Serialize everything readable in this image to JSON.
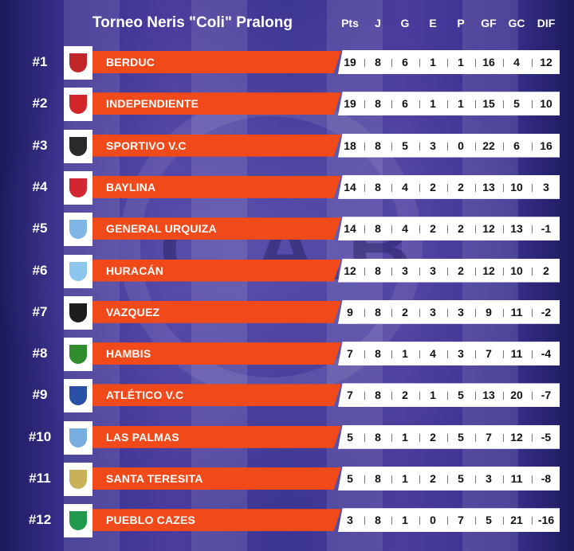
{
  "title": "Torneo Neris \"Coli\" Pralong",
  "columns": [
    "Pts",
    "J",
    "G",
    "E",
    "P",
    "GF",
    "GC",
    "DIF"
  ],
  "watermark": "C.A.B.",
  "teams": [
    {
      "pos": "#1",
      "name": "BERDUC",
      "crest": "berduc-crest-icon",
      "color": "#c0262a",
      "stats": [
        "19",
        "8",
        "6",
        "1",
        "1",
        "16",
        "4",
        "12"
      ]
    },
    {
      "pos": "#2",
      "name": "INDEPENDIENTE",
      "crest": "independiente-crest-icon",
      "color": "#d3262b",
      "stats": [
        "19",
        "8",
        "6",
        "1",
        "1",
        "15",
        "5",
        "10"
      ]
    },
    {
      "pos": "#3",
      "name": "SPORTIVO V.C",
      "crest": "sportivo-crest-icon",
      "color": "#2a2a2a",
      "stats": [
        "18",
        "8",
        "5",
        "3",
        "0",
        "22",
        "6",
        "16"
      ]
    },
    {
      "pos": "#4",
      "name": "BAYLINA",
      "crest": "baylina-crest-icon",
      "color": "#d22630",
      "stats": [
        "14",
        "8",
        "4",
        "2",
        "2",
        "13",
        "10",
        "3"
      ]
    },
    {
      "pos": "#5",
      "name": "GENERAL URQUIZA",
      "crest": "general-urquiza-crest-icon",
      "color": "#7fb6e6",
      "stats": [
        "14",
        "8",
        "4",
        "2",
        "2",
        "12",
        "13",
        "-1"
      ]
    },
    {
      "pos": "#6",
      "name": "HURACÁN",
      "crest": "huracan-crest-icon",
      "color": "#8cc6ec",
      "stats": [
        "12",
        "8",
        "3",
        "3",
        "2",
        "12",
        "10",
        "2"
      ]
    },
    {
      "pos": "#7",
      "name": "VAZQUEZ",
      "crest": "vazquez-crest-icon",
      "color": "#1c1c1c",
      "stats": [
        "9",
        "8",
        "2",
        "3",
        "3",
        "9",
        "11",
        "-2"
      ]
    },
    {
      "pos": "#8",
      "name": "HAMBIS",
      "crest": "hambis-crest-icon",
      "color": "#2f8c2f",
      "stats": [
        "7",
        "8",
        "1",
        "4",
        "3",
        "7",
        "11",
        "-4"
      ]
    },
    {
      "pos": "#9",
      "name": "ATLÉTICO V.C",
      "crest": "atletico-crest-icon",
      "color": "#2a4fa6",
      "stats": [
        "7",
        "8",
        "2",
        "1",
        "5",
        "13",
        "20",
        "-7"
      ]
    },
    {
      "pos": "#10",
      "name": "LAS PALMAS",
      "crest": "las-palmas-crest-icon",
      "color": "#79aee0",
      "stats": [
        "5",
        "8",
        "1",
        "2",
        "5",
        "7",
        "12",
        "-5"
      ]
    },
    {
      "pos": "#11",
      "name": "SANTA TERESITA",
      "crest": "santa-teresita-crest-icon",
      "color": "#c9b15a",
      "stats": [
        "5",
        "8",
        "1",
        "2",
        "5",
        "3",
        "11",
        "-8"
      ]
    },
    {
      "pos": "#12",
      "name": "PUEBLO CAZES",
      "crest": "pueblo-cazes-crest-icon",
      "color": "#1f9a4a",
      "stats": [
        "3",
        "8",
        "1",
        "0",
        "7",
        "5",
        "21",
        "-16"
      ]
    }
  ]
}
